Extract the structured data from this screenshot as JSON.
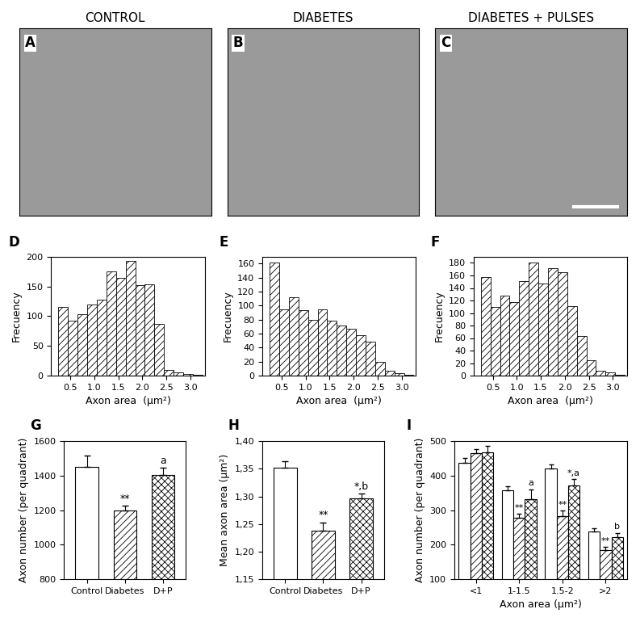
{
  "chart_data": [
    {
      "type": "image",
      "panel_label": "A",
      "title": "CONTROL"
    },
    {
      "type": "image",
      "panel_label": "B",
      "title": "DIABETES"
    },
    {
      "type": "image",
      "panel_label": "C",
      "title": "DIABETES + PULSES"
    },
    {
      "type": "histogram",
      "panel_label": "D",
      "bins": [
        0.25,
        0.45,
        0.65,
        0.85,
        1.05,
        1.25,
        1.45,
        1.65,
        1.85,
        2.05,
        2.25,
        2.45,
        2.65,
        2.85,
        3.05,
        3.25
      ],
      "counts": [
        115,
        93,
        103,
        120,
        127,
        175,
        165,
        193,
        152,
        153,
        87,
        10,
        6,
        3,
        1
      ],
      "xlim": [
        0.1,
        3.3
      ],
      "xticks": [
        0.5,
        1.0,
        1.5,
        2.0,
        2.5,
        3.0
      ],
      "ylim": [
        0,
        200
      ],
      "yticks": [
        0,
        50,
        100,
        150,
        200
      ],
      "xlabel": "Axon area  (μm²)",
      "ylabel": "Frecuency"
    },
    {
      "type": "histogram",
      "panel_label": "E",
      "bins": [
        0.25,
        0.45,
        0.65,
        0.85,
        1.05,
        1.25,
        1.45,
        1.65,
        1.85,
        2.05,
        2.25,
        2.45,
        2.65,
        2.85,
        3.05,
        3.25
      ],
      "counts": [
        162,
        95,
        112,
        93,
        80,
        95,
        79,
        72,
        67,
        58,
        48,
        20,
        7,
        3,
        1
      ],
      "xlim": [
        0.1,
        3.3
      ],
      "xticks": [
        0.5,
        1.0,
        1.5,
        2.0,
        2.5,
        3.0
      ],
      "ylim": [
        0,
        170
      ],
      "yticks": [
        0,
        20,
        40,
        60,
        80,
        100,
        120,
        140,
        160
      ],
      "xlabel": "Axon area  (μm²)",
      "ylabel": "Frecuency"
    },
    {
      "type": "histogram",
      "panel_label": "F",
      "bins": [
        0.25,
        0.45,
        0.65,
        0.85,
        1.05,
        1.25,
        1.45,
        1.65,
        1.85,
        2.05,
        2.25,
        2.45,
        2.65,
        2.85,
        3.05,
        3.25
      ],
      "counts": [
        158,
        110,
        128,
        118,
        151,
        180,
        147,
        172,
        165,
        111,
        63,
        25,
        8,
        5,
        1
      ],
      "xlim": [
        0.1,
        3.3
      ],
      "xticks": [
        0.5,
        1.0,
        1.5,
        2.0,
        2.5,
        3.0
      ],
      "ylim": [
        0,
        190
      ],
      "yticks": [
        0,
        20,
        40,
        60,
        80,
        100,
        120,
        140,
        160,
        180
      ],
      "xlabel": "Axon area  (μm²)",
      "ylabel": "Frecuency"
    },
    {
      "type": "bar",
      "panel_label": "G",
      "categories": [
        "Control",
        "Diabetes",
        "D+P"
      ],
      "values": [
        1450,
        1200,
        1405
      ],
      "errors": [
        65,
        25,
        40
      ],
      "significance": [
        null,
        "**",
        "a"
      ],
      "ylim": [
        800,
        1600
      ],
      "yticks": [
        800,
        1000,
        1200,
        1400,
        1600
      ],
      "ylabel": "Axon number (per quadrant)"
    },
    {
      "type": "bar",
      "panel_label": "H",
      "categories": [
        "Control",
        "Diabetes",
        "D+P"
      ],
      "values": [
        1.352,
        1.238,
        1.297
      ],
      "errors": [
        0.012,
        0.015,
        0.008
      ],
      "significance": [
        null,
        "**",
        "*,b"
      ],
      "ylim": [
        1.15,
        1.4
      ],
      "yticks": [
        {
          "value": 1.15,
          "label": "1,15"
        },
        {
          "value": 1.2,
          "label": "1,20"
        },
        {
          "value": 1.25,
          "label": "1,25"
        },
        {
          "value": 1.3,
          "label": "1,30"
        },
        {
          "value": 1.35,
          "label": "1,35"
        },
        {
          "value": 1.4,
          "label": "1,40"
        }
      ],
      "ylabel": "Mean axon area (μm²)"
    },
    {
      "type": "grouped_bar",
      "panel_label": "I",
      "categories": [
        "<1",
        "1-1.5",
        "1.5-2",
        ">2"
      ],
      "series": [
        {
          "values": [
            438,
            358,
            420,
            237
          ],
          "errors": [
            14,
            12,
            12,
            10
          ],
          "significance": [
            null,
            null,
            null,
            null
          ]
        },
        {
          "values": [
            465,
            277,
            283,
            183
          ],
          "errors": [
            12,
            12,
            15,
            10
          ],
          "significance": [
            null,
            "**",
            "**",
            "**"
          ]
        },
        {
          "values": [
            468,
            333,
            372,
            222
          ],
          "errors": [
            18,
            28,
            18,
            12
          ],
          "significance": [
            null,
            "a",
            "*,a",
            "b"
          ]
        }
      ],
      "ylim": [
        100,
        500
      ],
      "yticks": [
        100,
        200,
        300,
        400,
        500
      ],
      "xlabel": "Axon area (μm²)",
      "ylabel": "Axon number (per quadrant)"
    }
  ]
}
